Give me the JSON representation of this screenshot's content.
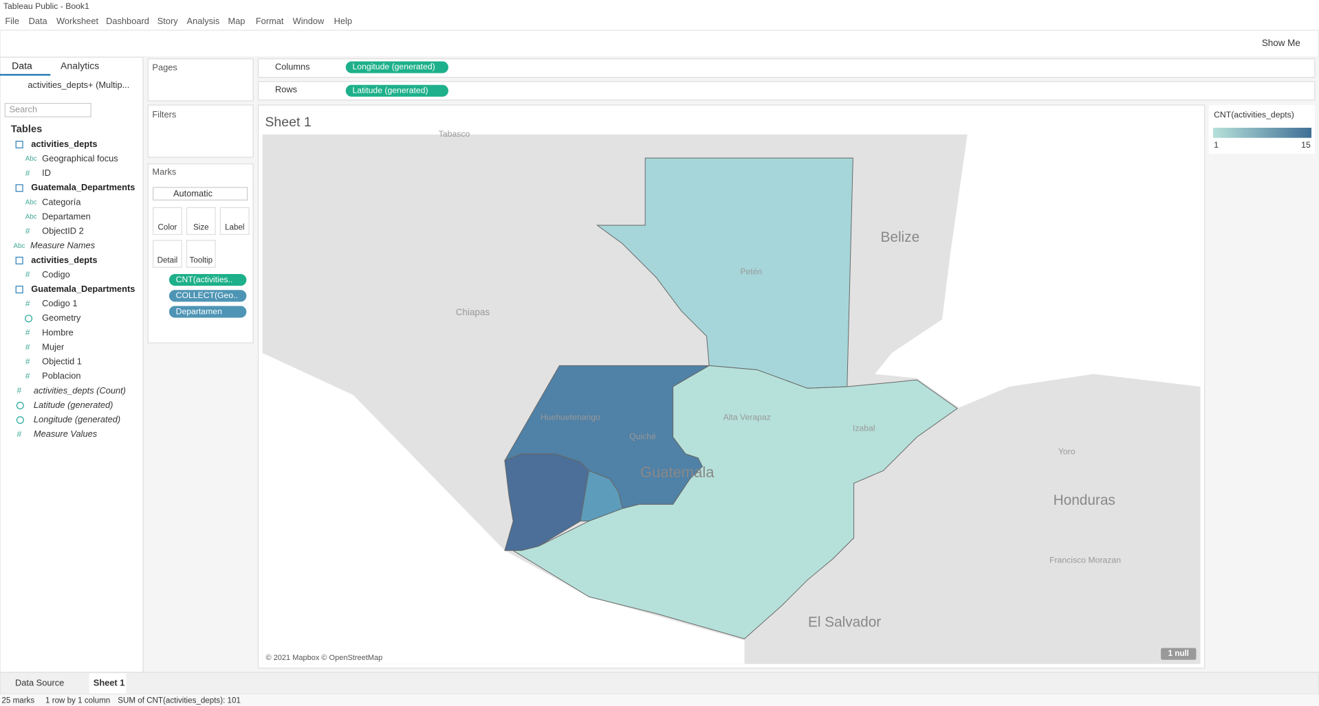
{
  "window": {
    "title": "Tableau Public - Book1",
    "menu": [
      "File",
      "Data",
      "Worksheet",
      "Dashboard",
      "Story",
      "Analysis",
      "Map",
      "Format",
      "Window",
      "Help"
    ]
  },
  "toolbar": {
    "show_me": "Show Me"
  },
  "data_pane": {
    "tabs": [
      "Data",
      "Analytics"
    ],
    "datasource": "activities_depts+ (Multip...",
    "search": "Search",
    "tables_heading": "Tables",
    "tree": [
      {
        "table": "activities_depts",
        "fields": [
          {
            "icon": "Abc",
            "name": "Geographical focus"
          },
          {
            "icon": "#",
            "name": "ID"
          }
        ]
      },
      {
        "table": "Guatemala_Departments",
        "fields": [
          {
            "icon": "Abc",
            "name": "Categoría"
          },
          {
            "icon": "Abc",
            "name": "Departamen"
          },
          {
            "icon": "#",
            "name": "ObjectID 2"
          }
        ]
      },
      {
        "icon": "Abc",
        "name": "Measure Names"
      },
      {
        "table": "activities_depts",
        "fields": [
          {
            "icon": "#",
            "name": "Codigo"
          }
        ]
      },
      {
        "table": "Guatemala_Departments",
        "fields": [
          {
            "icon": "#",
            "name": "Codigo 1"
          },
          {
            "name": "Geometry"
          },
          {
            "icon": "#",
            "name": "Hombre"
          },
          {
            "icon": "#",
            "name": "Mujer"
          },
          {
            "icon": "#",
            "name": "Objectid 1"
          },
          {
            "icon": "#",
            "name": "Poblacion"
          }
        ]
      },
      {
        "icon": "#",
        "name": "activities_depts (Count)"
      },
      {
        "name": "Latitude (generated)"
      },
      {
        "name": "Longitude (generated)"
      },
      {
        "icon": "#",
        "name": "Measure Values"
      }
    ]
  },
  "shelves": {
    "pages": "Pages",
    "filters": "Filters",
    "marks": "Marks",
    "mark_type": "Automatic",
    "cards": [
      "Color",
      "Size",
      "Label",
      "Detail",
      "Tooltip"
    ],
    "pills": [
      "CNT(activities..",
      "COLLECT(Geo..",
      "Departamen"
    ],
    "columns": {
      "label": "Columns",
      "pill": "Longitude (generated)"
    },
    "rows": {
      "label": "Rows",
      "pill": "Latitude (generated)"
    }
  },
  "sheet": {
    "title": "Sheet 1",
    "map_labels": [
      "Tabasco",
      "Belize",
      "Petén",
      "Chiapas",
      "Alta Verapaz",
      "Huehuetenango",
      "Quiché",
      "Izabal",
      "Guatemala",
      "Yoro",
      "Honduras",
      "Francisco Morazan",
      "El Salvador"
    ],
    "attribution": "© 2021 Mapbox © OpenStreetMap",
    "null_indicator": "1 null"
  },
  "legend": {
    "title": "CNT(activities_depts)",
    "min": 1,
    "max": 15
  },
  "bottom_tabs": [
    "Data Source",
    "Sheet 1"
  ],
  "status": [
    "25 marks",
    "1 row by 1 column",
    "SUM of CNT(activities_depts): 101"
  ]
}
